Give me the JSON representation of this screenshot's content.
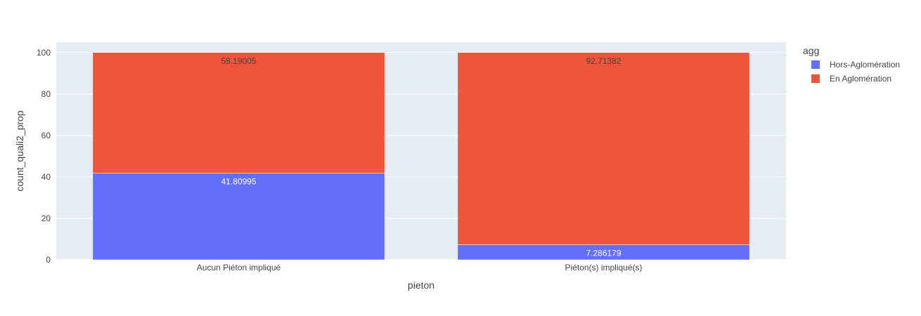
{
  "chart_data": {
    "type": "bar",
    "barmode": "stack",
    "categories": [
      "Aucun Piéton impliqué",
      "Piéton(s) impliqué(s)"
    ],
    "series": [
      {
        "name": "Hors-Aglomération",
        "color": "#636efa",
        "values": [
          41.80995,
          7.286179
        ],
        "labels": [
          "41.80995",
          "7.286179"
        ],
        "label_color": "#ffffff"
      },
      {
        "name": "En Aglomération",
        "color": "#ef553b",
        "values": [
          58.19005,
          92.71382
        ],
        "labels": [
          "58.19005",
          "92.71382"
        ],
        "label_color": "#444444"
      }
    ],
    "xlabel": "pieton",
    "ylabel": "count_quali2_prop",
    "ylim": [
      0,
      105
    ],
    "yticks": [
      0,
      20,
      40,
      60,
      80,
      100
    ],
    "ytick_labels": [
      "0",
      "20",
      "40",
      "60",
      "80",
      "100"
    ],
    "legend_title": "agg",
    "legend_position": "top-right",
    "grid": true,
    "plot_bgcolor": "#e5ecf6"
  }
}
